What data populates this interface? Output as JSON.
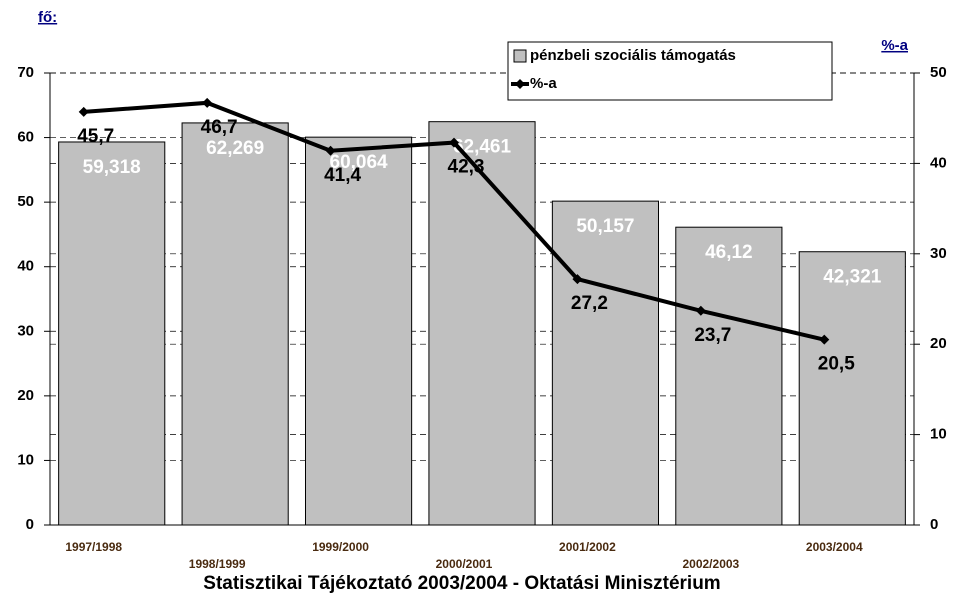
{
  "chart_data": {
    "type": "bar_line",
    "ylabel": "fő:",
    "y2label": "%-a",
    "source": "Statisztikai Tájékoztató 2003/2004 - Oktatási Minisztérium",
    "categories": [
      "1997/1998",
      "1998/1999",
      "1999/2000",
      "2000/2001",
      "2001/2002",
      "2002/2003",
      "2003/2004"
    ],
    "series": [
      {
        "name": "pénzbeli szociális támogatás",
        "color": "#c0c0c0",
        "type": "bar",
        "values": [
          59.318,
          62.269,
          60.064,
          62.461,
          50.157,
          46.12,
          42.321
        ],
        "value_labels": [
          "59,318",
          "62,269",
          "60,064",
          "62,461",
          "50,157",
          "46,12",
          "42,321"
        ]
      },
      {
        "name": "%-a",
        "color": "#000000",
        "type": "line",
        "axis": "y2",
        "values": [
          45.7,
          46.7,
          41.4,
          42.3,
          27.2,
          23.7,
          20.5
        ],
        "value_labels": [
          "45,7",
          "46,7",
          "41,4",
          "42,3",
          "27,2",
          "23,7",
          "20,5"
        ]
      }
    ],
    "ylim": [
      0,
      70
    ],
    "yticks": [
      0,
      10,
      20,
      30,
      40,
      50,
      60,
      70
    ],
    "y2lim": [
      0,
      50
    ],
    "y2ticks": [
      0,
      10,
      20,
      30,
      40,
      50
    ],
    "grid": true,
    "legend": "top-right"
  }
}
